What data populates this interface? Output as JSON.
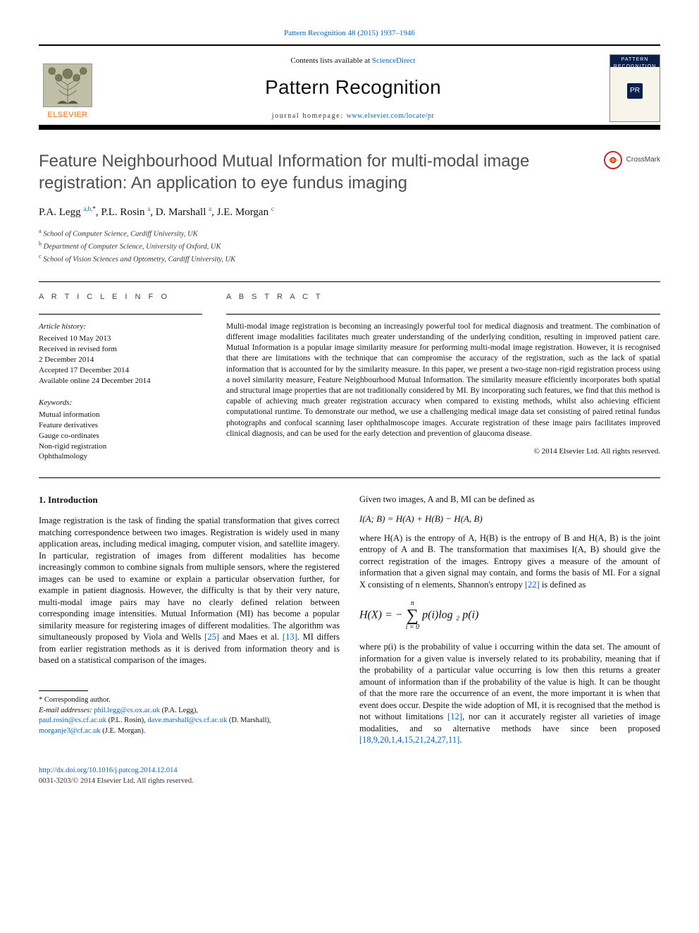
{
  "header": {
    "journal_ref": "Pattern Recognition 48 (2015) 1937–1946",
    "contents_prefix": "Contents lists available at ",
    "contents_link": "ScienceDirect",
    "journal_title": "Pattern Recognition",
    "homepage_prefix": "journal homepage: ",
    "homepage_url": "www.elsevier.com/locate/pr",
    "publisher": "ELSEVIER",
    "cover_top": "PATTERN",
    "cover_top2": "RECOGNITION",
    "cover_logo": "PR"
  },
  "crossmark_label": "CrossMark",
  "title": "Feature Neighbourhood Mutual Information for multi-modal image registration: An application to eye fundus imaging",
  "authors_html": "P.A. Legg <sup>a,b,</sup><sup class='star'>*</sup>, P.L. Rosin <sup>a</sup>, D. Marshall <sup>a</sup>, J.E. Morgan <sup>c</sup>",
  "affiliations": [
    {
      "sup": "a",
      "text": "School of Computer Science, Cardiff University, UK"
    },
    {
      "sup": "b",
      "text": "Department of Computer Science, University of Oxford, UK"
    },
    {
      "sup": "c",
      "text": "School of Vision Sciences and Optometry, Cardiff University, UK"
    }
  ],
  "info": {
    "label": "A R T I C L E  I N F O",
    "history_head": "Article history:",
    "history": "Received 10 May 2013\nReceived in revised form\n2 December 2014\nAccepted 17 December 2014\nAvailable online 24 December 2014",
    "keywords_head": "Keywords:",
    "keywords": "Mutual information\nFeature derivatives\nGauge co-ordinates\nNon-rigid registration\nOphthalmology"
  },
  "abstract": {
    "label": "A B S T R A C T",
    "text": "Multi-modal image registration is becoming an increasingly powerful tool for medical diagnosis and treatment. The combination of different image modalities facilitates much greater understanding of the underlying condition, resulting in improved patient care. Mutual Information is a popular image similarity measure for performing multi-modal image registration. However, it is recognised that there are limitations with the technique that can compromise the accuracy of the registration, such as the lack of spatial information that is accounted for by the similarity measure. In this paper, we present a two-stage non-rigid registration process using a novel similarity measure, Feature Neighbourhood Mutual Information. The similarity measure efficiently incorporates both spatial and structural image properties that are not traditionally considered by MI. By incorporating such features, we find that this method is capable of achieving much greater registration accuracy when compared to existing methods, whilst also achieving efficient computational runtime. To demonstrate our method, we use a challenging medical image data set consisting of paired retinal fundus photographs and confocal scanning laser ophthalmoscope images. Accurate registration of these image pairs facilitates improved clinical diagnosis, and can be used for the early detection and prevention of glaucoma disease.",
    "copyright": "© 2014 Elsevier Ltd. All rights reserved."
  },
  "body": {
    "sec1_head": "1.  Introduction",
    "p1": "Image registration is the task of finding the spatial transformation that gives correct matching correspondence between two images. Registration is widely used in many application areas, including medical imaging, computer vision, and satellite imagery. In particular, registration of images from different modalities has become increasingly common to combine signals from multiple sensors, where the registered images can be used to examine or explain a particular observation further, for example in patient diagnosis. However, the difficulty is that by their very nature, multi-modal image pairs may have no clearly defined relation between corresponding image intensities. Mutual Information (MI) has become a popular similarity measure for registering images of different modalities. The algorithm was simultaneously proposed by Viola and Wells ",
    "cite1": "[25]",
    "p1b": " and Maes et al. ",
    "cite2": "[13]",
    "p1c": ". MI differs from earlier registration methods as it is derived from information theory and is based on a statistical comparison of the images.",
    "p2a": "Given two images, A and B, MI can be defined as",
    "formula1": "I(A; B) = H(A) + H(B) − H(A, B)",
    "p2b": "where H(A) is the entropy of A, H(B) is the entropy of B and H(A, B) is the joint entropy of A and B. The transformation that maximises I(A, B) should give the correct registration of the images. Entropy gives a measure of the amount of information that a given signal may contain, and forms the basis of MI. For a signal X consisting of n elements, Shannon's entropy ",
    "cite3": "[22]",
    "p2c": " is defined as",
    "formula2_lead": "H(X) = − ",
    "formula2_top": "n",
    "formula2_bot": "i = 0",
    "formula2_tail": " p(i)log ₂ p(i)",
    "p3a": "where p(i) is the probability of value i occurring within the data set. The amount of information for a given value is inversely related to its probability, meaning that if the probability of a particular value occurring is low then this returns a greater amount of information than if the probability of the value is high. It can be thought of that the more rare the occurrence of an event, the more important it is when that event does occur. Despite the wide adoption of MI, it is recognised that the method is not without limitations ",
    "cite4": "[12]",
    "p3b": ", nor can it accurately register all varieties of image modalities, and so alternative methods have since been proposed ",
    "cite5": "[18,9,20,1,4,15,21,24,27,11]",
    "p3c": "."
  },
  "footnotes": {
    "corr": "* Corresponding author.",
    "email_label": "E-mail addresses: ",
    "emails": [
      {
        "addr": "phil.legg@cs.ox.ac.uk",
        "who": " (P.A. Legg),"
      },
      {
        "addr": "paul.rosin@cs.cf.ac.uk",
        "who": " (P.L. Rosin), "
      },
      {
        "addr": "dave.marshall@cs.cf.ac.uk",
        "who": " (D. Marshall),"
      },
      {
        "addr": "morganje3@cf.ac.uk",
        "who": " (J.E. Morgan)."
      }
    ]
  },
  "doi": "http://dx.doi.org/10.1016/j.patcog.2014.12.014",
  "issn": "0031-3203/© 2014 Elsevier Ltd. All rights reserved."
}
